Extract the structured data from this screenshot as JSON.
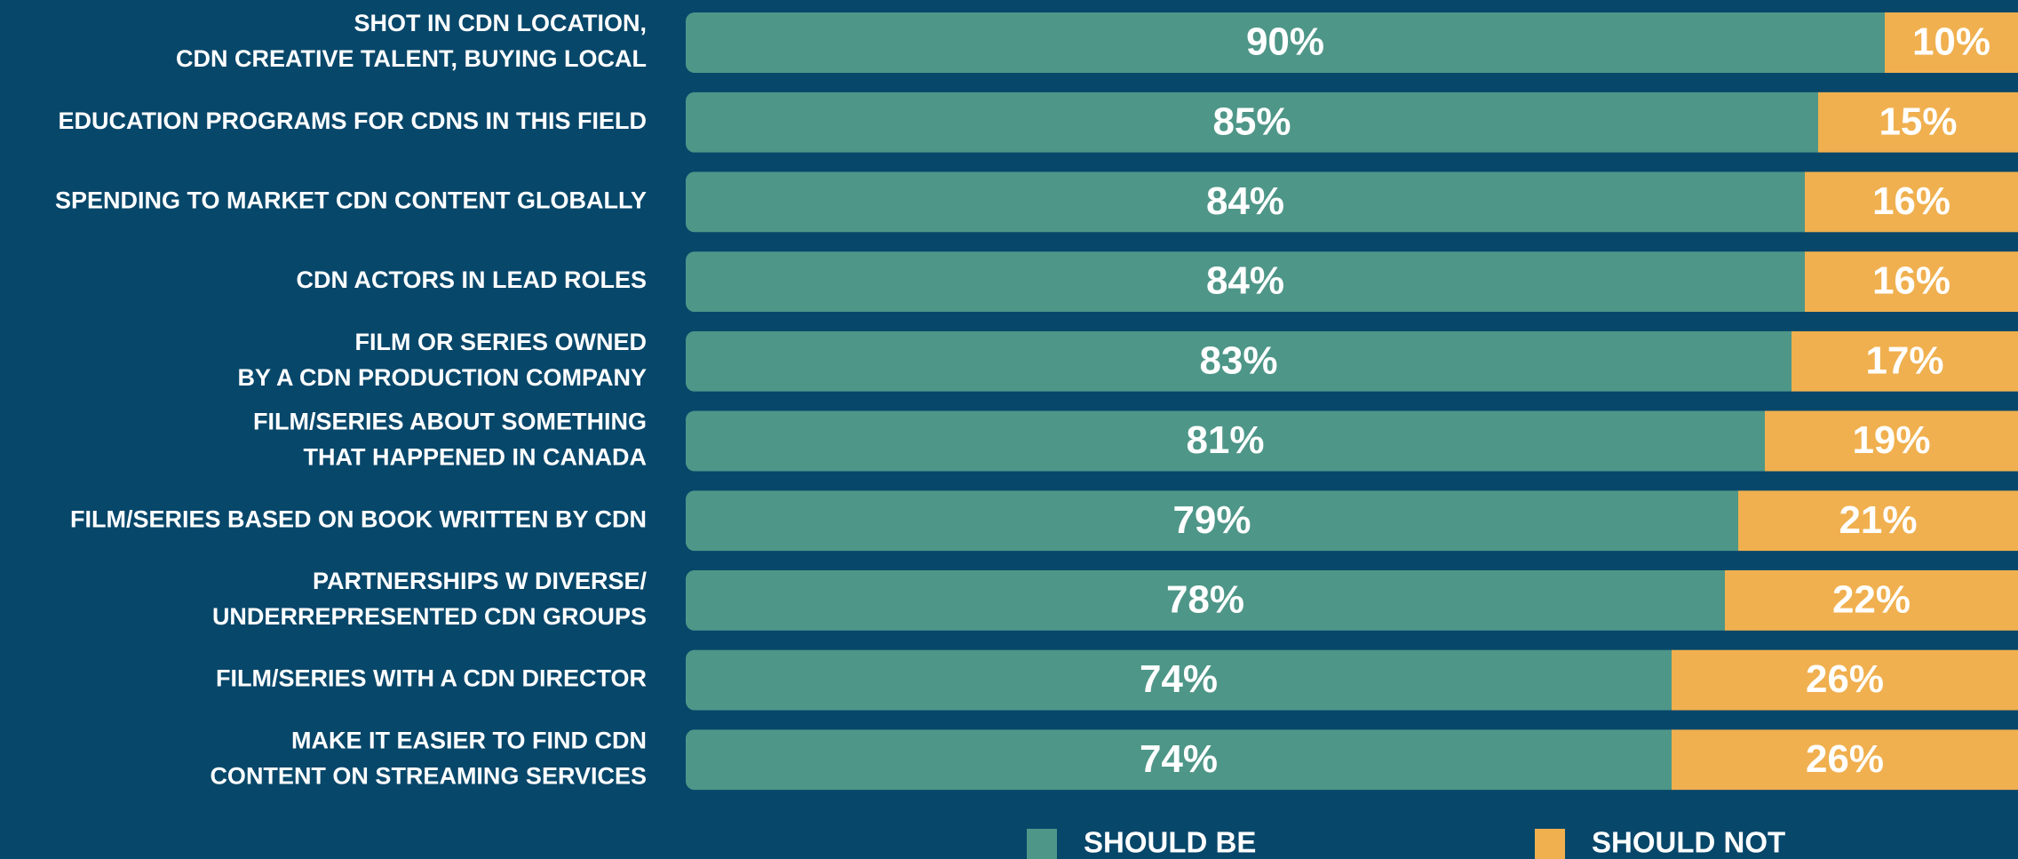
{
  "chart_data": {
    "type": "stacked-bar-horizontal",
    "categories": [
      "SHOT IN CDN LOCATION,\nCDN CREATIVE TALENT, BUYING LOCAL",
      "EDUCATION PROGRAMS FOR CDNS IN THIS FIELD",
      "SPENDING TO MARKET CDN CONTENT GLOBALLY",
      "CDN ACTORS IN LEAD ROLES",
      "FILM OR SERIES OWNED\nBY A CDN PRODUCTION COMPANY",
      "FILM/SERIES ABOUT SOMETHING\nTHAT HAPPENED IN CANADA",
      "FILM/SERIES BASED ON BOOK WRITTEN BY CDN",
      "PARTNERSHIPS W DIVERSE/\nUNDERREPRESENTED CDN GROUPS",
      "FILM/SERIES WITH A CDN DIRECTOR",
      "MAKE IT EASIER TO FIND CDN\nCONTENT ON STREAMING SERVICES"
    ],
    "series": [
      {
        "name": "SHOULD BE",
        "color": "#4e9688",
        "values": [
          90,
          85,
          84,
          84,
          83,
          81,
          79,
          78,
          74,
          74
        ],
        "value_labels": [
          "90%",
          "85%",
          "84%",
          "84%",
          "83%",
          "81%",
          "79%",
          "78%",
          "74%",
          "74%"
        ]
      },
      {
        "name": "SHOULD NOT",
        "color": "#f0b04f",
        "values": [
          10,
          15,
          16,
          16,
          17,
          19,
          21,
          22,
          26,
          26
        ],
        "value_labels": [
          "10%",
          "15%",
          "16%",
          "16%",
          "17%",
          "19%",
          "21%",
          "22%",
          "26%",
          "26%"
        ]
      }
    ],
    "xlim": [
      0,
      100
    ]
  }
}
